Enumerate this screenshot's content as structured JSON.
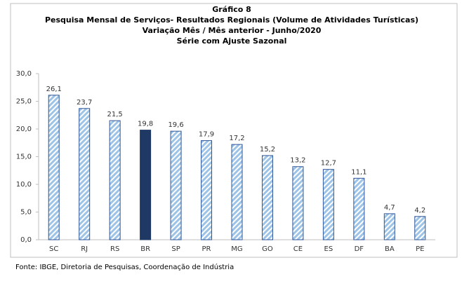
{
  "chart_data": {
    "type": "bar",
    "title": [
      "Gráfico 8",
      "Pesquisa Mensal de Serviços- Resultados Regionais (Volume de Atividades Turísticas)",
      "Variação Mês / Mês anterior  - Junho/2020",
      "Série com Ajuste Sazonal"
    ],
    "categories": [
      "SC",
      "RJ",
      "RS",
      "BR",
      "SP",
      "PR",
      "MG",
      "GO",
      "CE",
      "ES",
      "DF",
      "BA",
      "PE"
    ],
    "values": [
      26.1,
      23.7,
      21.5,
      19.8,
      19.6,
      17.9,
      17.2,
      15.2,
      13.2,
      12.7,
      11.1,
      4.7,
      4.2
    ],
    "value_labels": [
      "26,1",
      "23,7",
      "21,5",
      "19,8",
      "19,6",
      "17,9",
      "17,2",
      "15,2",
      "13,2",
      "12,7",
      "11,1",
      "4,7",
      "4,2"
    ],
    "colors": [
      "#9dc3e6",
      "#9dc3e6",
      "#9dc3e6",
      "#1f3864",
      "#9dc3e6",
      "#9dc3e6",
      "#9dc3e6",
      "#9dc3e6",
      "#9dc3e6",
      "#9dc3e6",
      "#9dc3e6",
      "#9dc3e6",
      "#9dc3e6"
    ],
    "hatched": [
      true,
      true,
      true,
      false,
      true,
      true,
      true,
      true,
      true,
      true,
      true,
      true,
      true
    ],
    "ylim": [
      0,
      30
    ],
    "yticks": [
      {
        "value": 0,
        "label": "0,0"
      },
      {
        "value": 5,
        "label": "5,0"
      },
      {
        "value": 10,
        "label": "10,0"
      },
      {
        "value": 15,
        "label": "15,0"
      },
      {
        "value": 20,
        "label": "20,0"
      },
      {
        "value": 25,
        "label": "25,0"
      },
      {
        "value": 30,
        "label": "30,0"
      }
    ],
    "grid": false,
    "source": "Fonte: IBGE, Diretoria de Pesquisas, Coordenação de Indústria"
  }
}
